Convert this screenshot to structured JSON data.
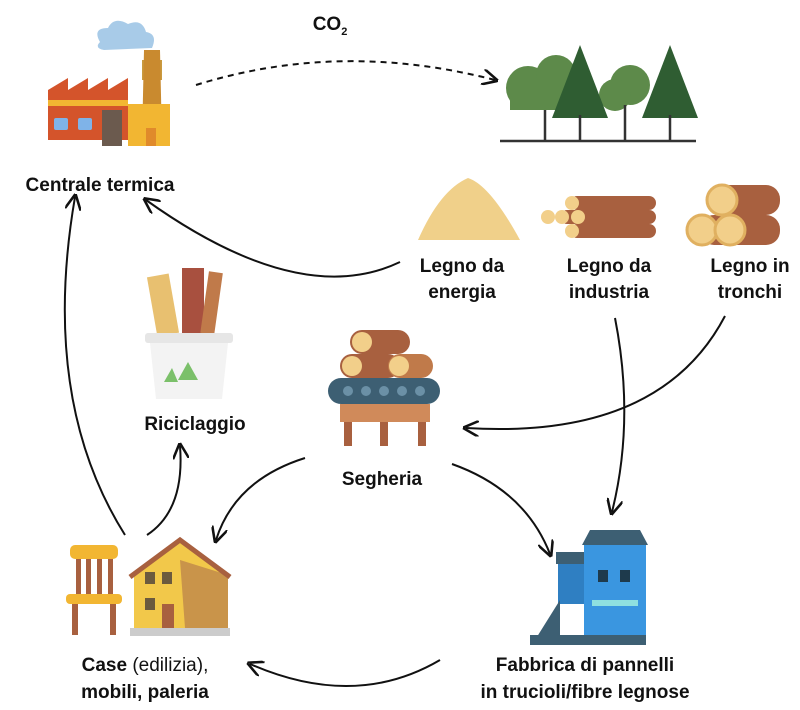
{
  "co2": {
    "text": "CO",
    "subscript": "2"
  },
  "centrale_termica": {
    "label": "Centrale termica"
  },
  "legno_energia": {
    "lines": [
      "Legno da",
      "energia"
    ]
  },
  "legno_industria": {
    "lines": [
      "Legno da",
      "industria"
    ]
  },
  "legno_tronchi": {
    "lines": [
      "Legno in",
      "tronchi"
    ]
  },
  "riciclaggio": {
    "label": "Riciclaggio"
  },
  "segheria": {
    "label": "Segheria"
  },
  "case": {
    "bold": "Case",
    "regular": "(edilizia),",
    "line2": "mobili, paleria"
  },
  "fabbrica": {
    "lines": [
      "Fabbrica di pannelli",
      "in trucioli/fibre legnose"
    ]
  }
}
